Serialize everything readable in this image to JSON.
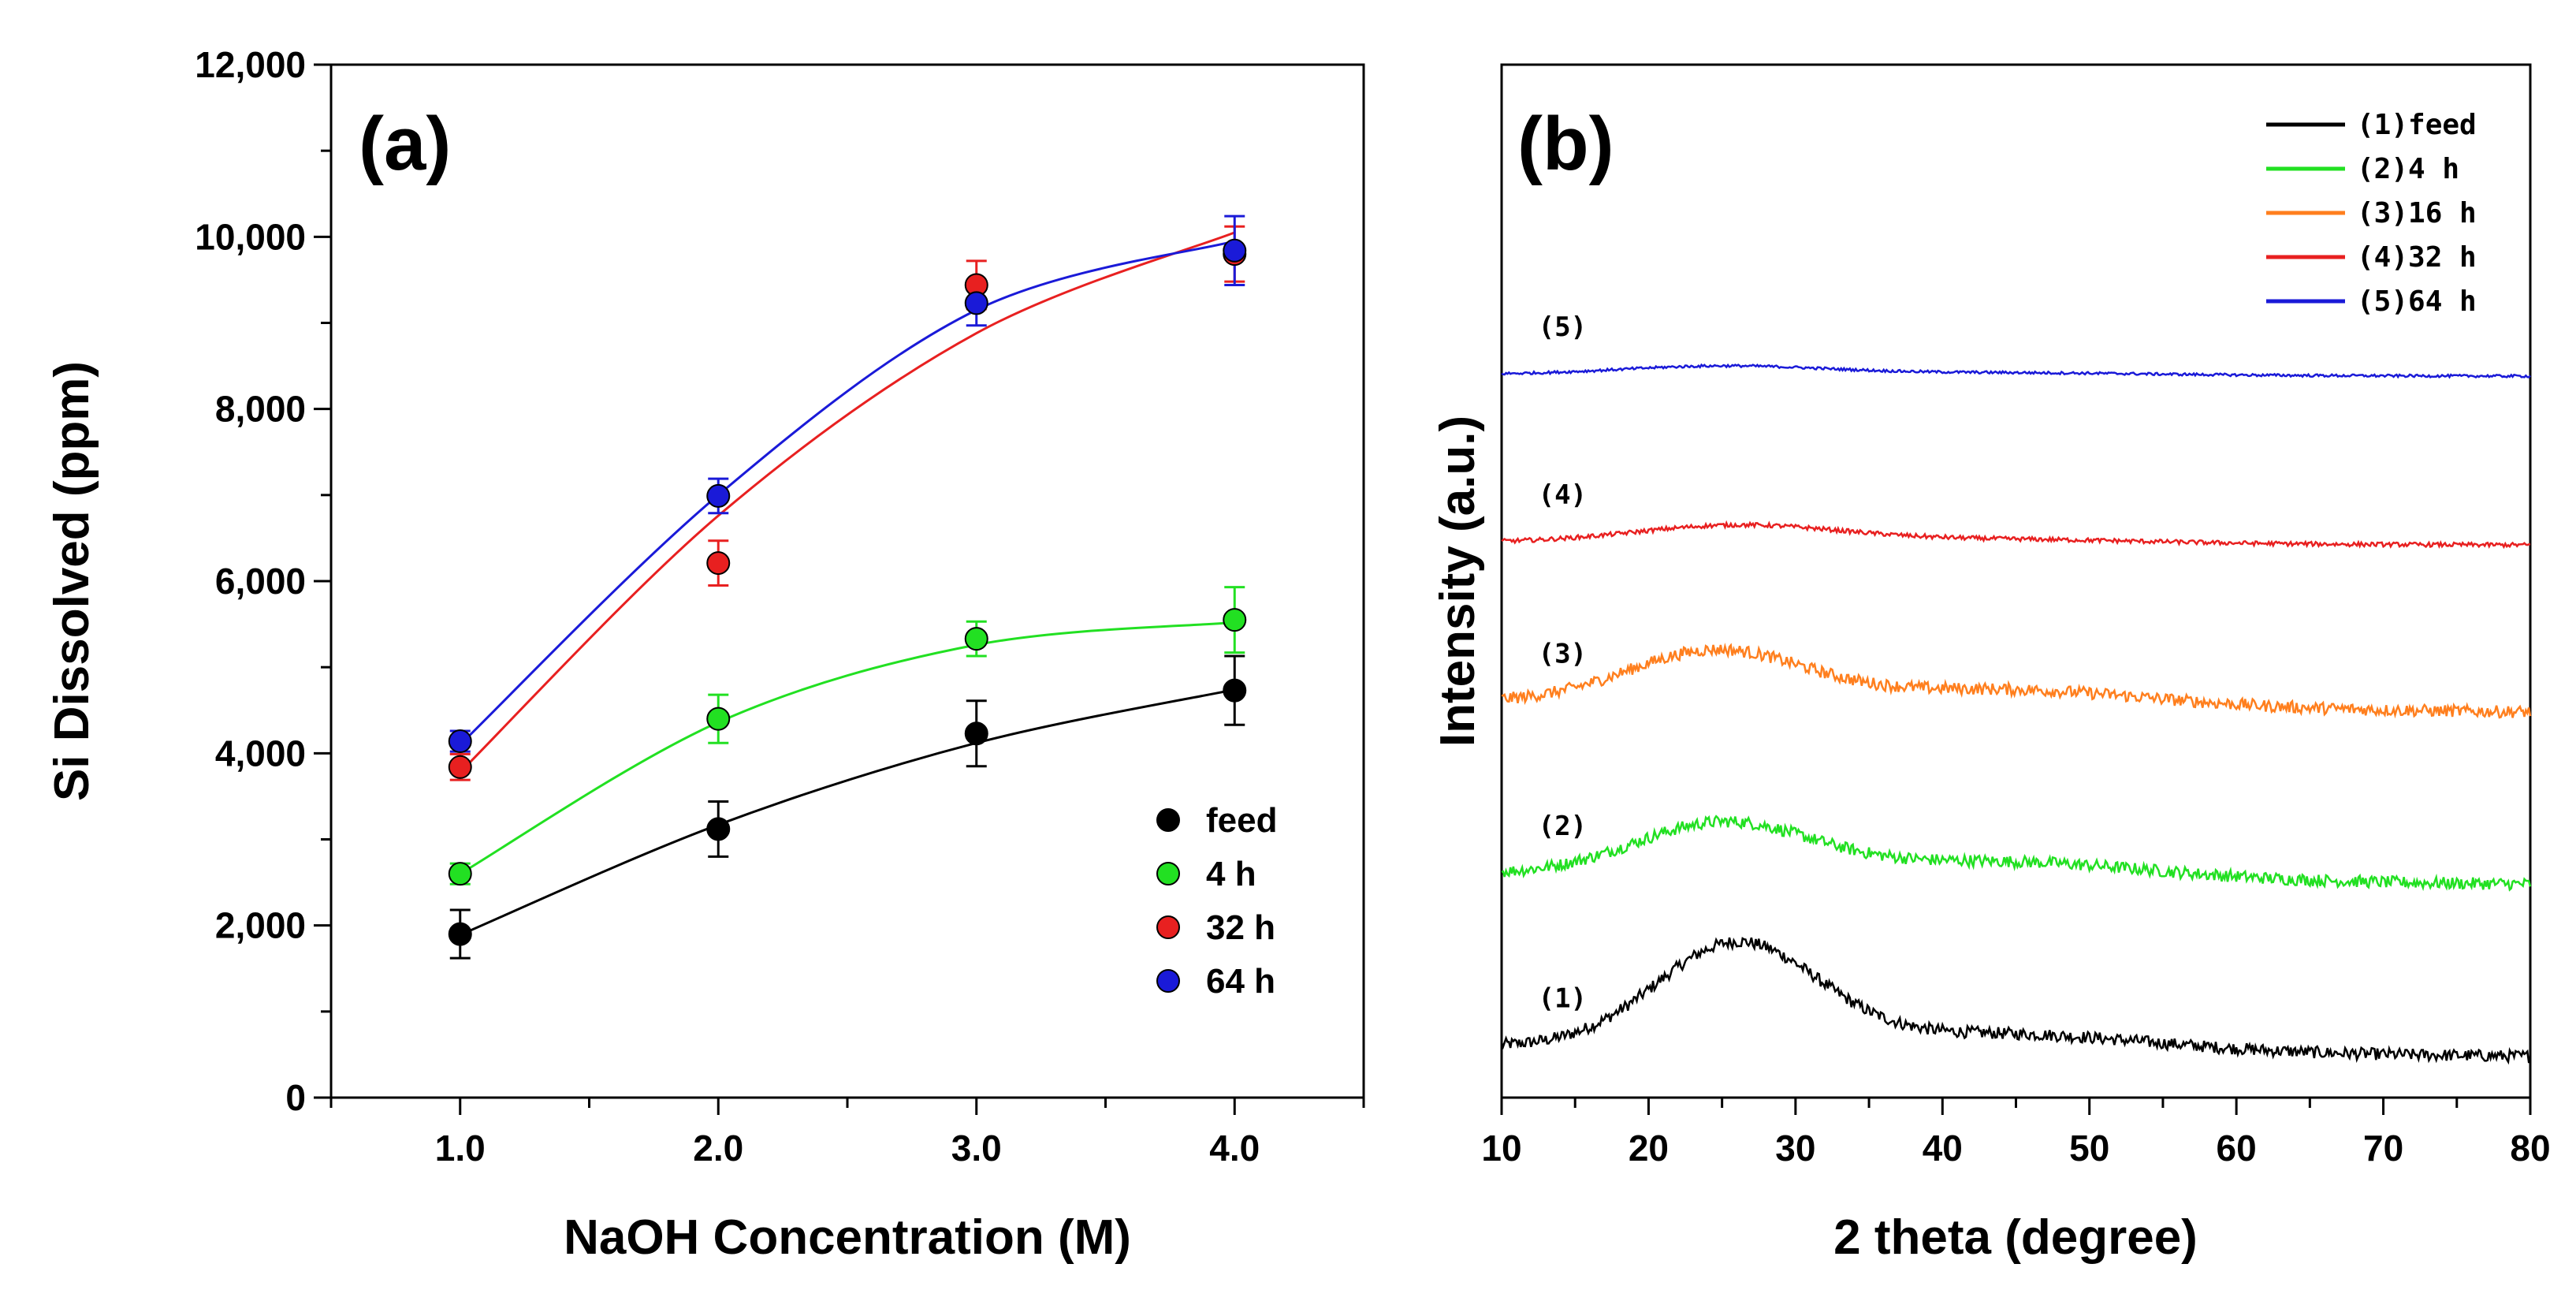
{
  "chart_data": [
    {
      "type": "scatter",
      "panel_label": "(a)",
      "xlabel": "NaOH Concentration (M)",
      "ylabel": "Si Dissolved (ppm)",
      "xlim": [
        0.5,
        4.5
      ],
      "ylim": [
        0,
        12000
      ],
      "x_ticks": [
        "1.0",
        "2.0",
        "3.0",
        "4.0"
      ],
      "x_tick_values": [
        1,
        2,
        3,
        4
      ],
      "y_ticks": [
        "0",
        "2,000",
        "4,000",
        "6,000",
        "8,000",
        "10,000",
        "12,000"
      ],
      "y_tick_values": [
        0,
        2000,
        4000,
        6000,
        8000,
        10000,
        12000
      ],
      "legend_position": "bottom-right",
      "series": [
        {
          "name": "feed",
          "color": "#000000",
          "x": [
            1,
            2,
            3,
            4
          ],
          "values": [
            1900,
            3120,
            4230,
            4730
          ],
          "errors": [
            280,
            320,
            380,
            400
          ],
          "fit": [
            1890,
            3170,
            4120,
            4740
          ]
        },
        {
          "name": "4 h",
          "color": "#22e022",
          "x": [
            1,
            2,
            3,
            4
          ],
          "values": [
            2600,
            4400,
            5330,
            5550
          ],
          "errors": [
            120,
            280,
            200,
            380
          ],
          "fit": [
            2600,
            4360,
            5260,
            5520
          ]
        },
        {
          "name": "32 h",
          "color": "#e82020",
          "x": [
            1,
            2,
            3,
            4
          ],
          "values": [
            3840,
            6210,
            9440,
            9800
          ],
          "errors": [
            150,
            260,
            280,
            320
          ],
          "fit": [
            3780,
            6760,
            8880,
            10050
          ]
        },
        {
          "name": "64 h",
          "color": "#1a1ad8",
          "x": [
            1,
            2,
            3,
            4
          ],
          "values": [
            4140,
            6990,
            9230,
            9840
          ],
          "errors": [
            120,
            200,
            260,
            400
          ],
          "fit": [
            4100,
            7000,
            9150,
            9950
          ]
        }
      ]
    },
    {
      "type": "line",
      "panel_label": "(b)",
      "xlabel": "2 theta (degree)",
      "ylabel": "Intensity (a.u.)",
      "xlim": [
        10,
        80
      ],
      "x_ticks": [
        "10",
        "20",
        "30",
        "40",
        "50",
        "60",
        "70",
        "80"
      ],
      "x_tick_values": [
        10,
        20,
        30,
        40,
        50,
        60,
        70,
        80
      ],
      "y_ticks": [],
      "legend_position": "top-right",
      "series": [
        {
          "name": "(1)feed",
          "label": "(1)",
          "color": "#000000",
          "offset": 0.6,
          "peak_center": 26,
          "peak_height": 1.2,
          "peak_width": 5.5,
          "tail_level": 0.2,
          "noise": 0.07
        },
        {
          "name": "(2)4 h",
          "label": "(2)",
          "color": "#22e022",
          "offset": 2.6,
          "peak_center": 25,
          "peak_height": 0.6,
          "peak_width": 6,
          "tail_level": 0.2,
          "noise": 0.07
        },
        {
          "name": "(3)16 h",
          "label": "(3)",
          "color": "#ff7f1e",
          "offset": 4.6,
          "peak_center": 24.5,
          "peak_height": 0.6,
          "peak_width": 6,
          "tail_level": 0.2,
          "noise": 0.07
        },
        {
          "name": "(4)32 h",
          "label": "(4)",
          "color": "#e82020",
          "offset": 6.45,
          "peak_center": 26,
          "peak_height": 0.2,
          "peak_width": 7,
          "tail_level": 0.05,
          "noise": 0.025
        },
        {
          "name": "(5)64 h",
          "label": "(5)",
          "color": "#1a1ad8",
          "offset": 8.4,
          "peak_center": 25,
          "peak_height": 0.1,
          "peak_width": 7,
          "tail_level": 0.03,
          "noise": 0.015
        }
      ]
    }
  ]
}
